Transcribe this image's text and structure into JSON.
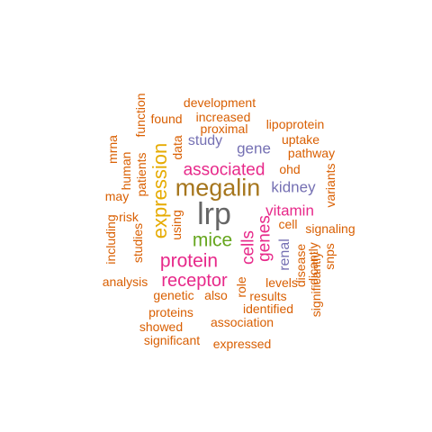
{
  "colors": {
    "orange": "#d95f02",
    "gold": "#e6ab02",
    "brown": "#a6761d",
    "magenta": "#e7298a",
    "purple": "#7570b3",
    "green": "#66a61e",
    "gray": "#666666"
  },
  "words": [
    {
      "text": "lrp",
      "color": "gray",
      "vertical": false
    },
    {
      "text": "megalin",
      "color": "brown",
      "vertical": false
    },
    {
      "text": "expression",
      "color": "gold",
      "vertical": true
    },
    {
      "text": "mice",
      "color": "green",
      "vertical": false
    },
    {
      "text": "protein",
      "color": "magenta",
      "vertical": false
    },
    {
      "text": "receptor",
      "color": "magenta",
      "vertical": false
    },
    {
      "text": "associated",
      "color": "magenta",
      "vertical": false
    },
    {
      "text": "cells",
      "color": "magenta",
      "vertical": true
    },
    {
      "text": "genes",
      "color": "magenta",
      "vertical": true
    },
    {
      "text": "vitamin",
      "color": "magenta",
      "vertical": false
    },
    {
      "text": "kidney",
      "color": "purple",
      "vertical": false
    },
    {
      "text": "gene",
      "color": "purple",
      "vertical": false
    },
    {
      "text": "study",
      "color": "purple",
      "vertical": false
    },
    {
      "text": "renal",
      "color": "purple",
      "vertical": true
    },
    {
      "text": "development",
      "color": "orange",
      "vertical": false
    },
    {
      "text": "increased",
      "color": "orange",
      "vertical": false
    },
    {
      "text": "proximal",
      "color": "orange",
      "vertical": false
    },
    {
      "text": "found",
      "color": "orange",
      "vertical": false
    },
    {
      "text": "lipoprotein",
      "color": "orange",
      "vertical": false
    },
    {
      "text": "uptake",
      "color": "orange",
      "vertical": false
    },
    {
      "text": "pathway",
      "color": "orange",
      "vertical": false
    },
    {
      "text": "ohd",
      "color": "orange",
      "vertical": false
    },
    {
      "text": "cell",
      "color": "orange",
      "vertical": false
    },
    {
      "text": "signaling",
      "color": "orange",
      "vertical": false
    },
    {
      "text": "levels",
      "color": "orange",
      "vertical": false
    },
    {
      "text": "results",
      "color": "orange",
      "vertical": false
    },
    {
      "text": "identified",
      "color": "orange",
      "vertical": false
    },
    {
      "text": "association",
      "color": "orange",
      "vertical": false
    },
    {
      "text": "expressed",
      "color": "orange",
      "vertical": false
    },
    {
      "text": "significant",
      "color": "orange",
      "vertical": false
    },
    {
      "text": "showed",
      "color": "orange",
      "vertical": false
    },
    {
      "text": "proteins",
      "color": "orange",
      "vertical": false
    },
    {
      "text": "genetic",
      "color": "orange",
      "vertical": false
    },
    {
      "text": "also",
      "color": "orange",
      "vertical": false
    },
    {
      "text": "analysis",
      "color": "orange",
      "vertical": false
    },
    {
      "text": "risk",
      "color": "orange",
      "vertical": false
    },
    {
      "text": "may",
      "color": "orange",
      "vertical": false
    },
    {
      "text": "function",
      "color": "orange",
      "vertical": true
    },
    {
      "text": "data",
      "color": "orange",
      "vertical": true
    },
    {
      "text": "mrna",
      "color": "orange",
      "vertical": true
    },
    {
      "text": "human",
      "color": "orange",
      "vertical": true
    },
    {
      "text": "patients",
      "color": "orange",
      "vertical": true
    },
    {
      "text": "including",
      "color": "orange",
      "vertical": true
    },
    {
      "text": "studies",
      "color": "orange",
      "vertical": true
    },
    {
      "text": "using",
      "color": "orange",
      "vertical": true
    },
    {
      "text": "role",
      "color": "orange",
      "vertical": true
    },
    {
      "text": "disease",
      "color": "orange",
      "vertical": true
    },
    {
      "text": "dicantly",
      "color": "orange",
      "vertical": true
    },
    {
      "text": "significantly",
      "color": "orange",
      "vertical": true
    },
    {
      "text": "snps",
      "color": "orange",
      "vertical": true
    },
    {
      "text": "variants",
      "color": "orange",
      "vertical": true
    }
  ]
}
